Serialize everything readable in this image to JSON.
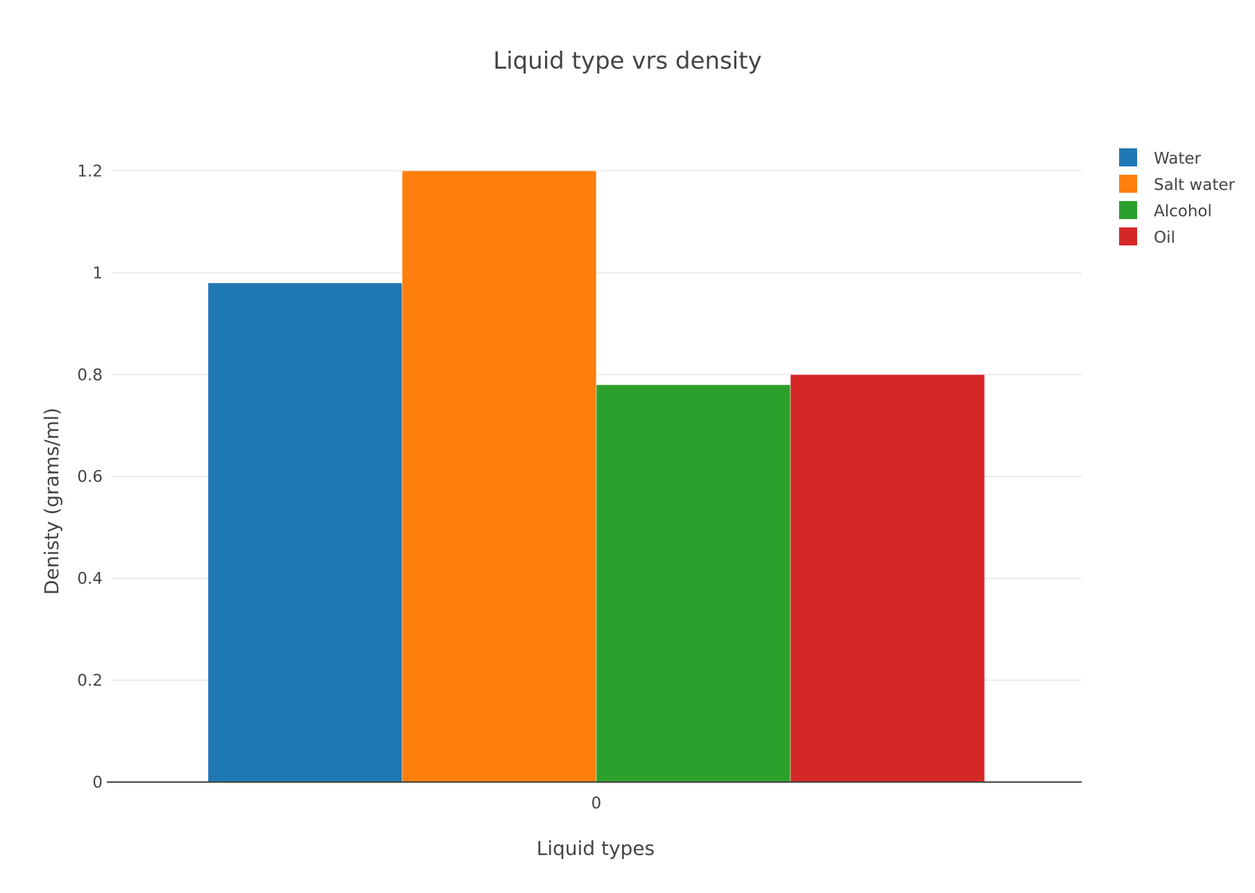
{
  "chart_data": {
    "type": "bar",
    "title": "Liquid type vrs density",
    "xlabel": "Liquid types",
    "ylabel": "Denisty (grams/ml)",
    "categories": [
      "0"
    ],
    "series": [
      {
        "name": "Water",
        "values": [
          0.98
        ],
        "color": "#1f77b4"
      },
      {
        "name": "Salt water",
        "values": [
          1.2
        ],
        "color": "#ff7f0e"
      },
      {
        "name": "Alcohol",
        "values": [
          0.78
        ],
        "color": "#2ca02c"
      },
      {
        "name": "Oil",
        "values": [
          0.8
        ],
        "color": "#d62728"
      }
    ],
    "yticks": [
      "0",
      "0.2",
      "0.4",
      "0.6",
      "0.8",
      "1",
      "1.2"
    ],
    "ytick_values": [
      0,
      0.2,
      0.4,
      0.6,
      0.8,
      1.0,
      1.2
    ],
    "ylim": [
      0,
      1.2632
    ],
    "grid": true,
    "legend_position": "top-right"
  }
}
